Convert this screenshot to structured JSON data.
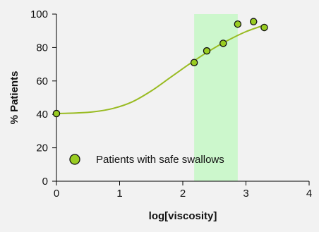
{
  "chart_data": {
    "type": "scatter",
    "xlabel": "log[viscosity]",
    "ylabel": "% Patients",
    "xlim": [
      0,
      4
    ],
    "ylim": [
      0,
      100
    ],
    "xticks": [
      "0",
      "1",
      "2",
      "3",
      "4"
    ],
    "yticks": [
      "0",
      "20",
      "40",
      "60",
      "80",
      "100"
    ],
    "x_tick_values": [
      0,
      1,
      2,
      3,
      4
    ],
    "y_tick_values": [
      0,
      20,
      40,
      60,
      80,
      100
    ],
    "grid": false,
    "legend_position": "bottom-left",
    "highlight_band": {
      "x_from": 2.18,
      "x_to": 2.87,
      "color": "#ccf7cc"
    },
    "series": [
      {
        "name": "Patients with safe swallows",
        "marker_color": "#99cc22",
        "points": [
          {
            "x": 0.0,
            "y": 40.5
          },
          {
            "x": 2.18,
            "y": 71
          },
          {
            "x": 2.38,
            "y": 78
          },
          {
            "x": 2.64,
            "y": 82.5
          },
          {
            "x": 2.87,
            "y": 94
          },
          {
            "x": 3.12,
            "y": 95.5
          },
          {
            "x": 3.29,
            "y": 92
          }
        ]
      }
    ],
    "fit_curve": {
      "color": "#99bb22",
      "points": [
        {
          "x": 0.0,
          "y": 40.5
        },
        {
          "x": 0.3,
          "y": 40.8
        },
        {
          "x": 0.6,
          "y": 41.6
        },
        {
          "x": 0.9,
          "y": 43.6
        },
        {
          "x": 1.2,
          "y": 47.5
        },
        {
          "x": 1.5,
          "y": 54
        },
        {
          "x": 1.8,
          "y": 62
        },
        {
          "x": 2.1,
          "y": 70
        },
        {
          "x": 2.4,
          "y": 77.5
        },
        {
          "x": 2.7,
          "y": 84
        },
        {
          "x": 3.0,
          "y": 89.5
        },
        {
          "x": 3.3,
          "y": 93.5
        }
      ]
    }
  }
}
